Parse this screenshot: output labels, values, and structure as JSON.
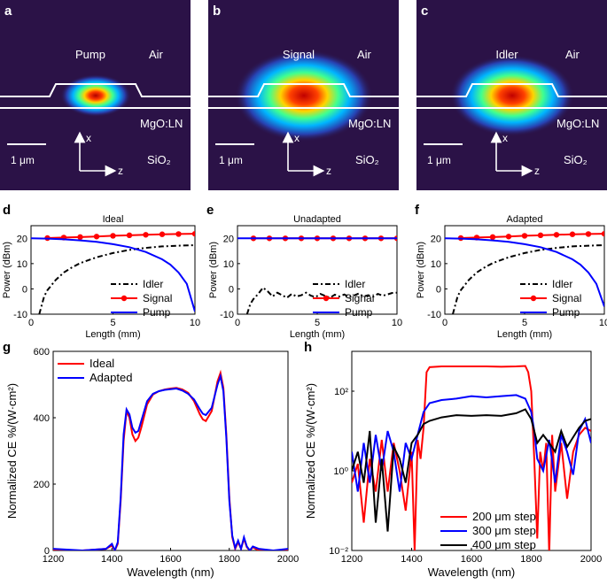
{
  "mode_panels": [
    {
      "letter": "a",
      "mode": "Pump",
      "air": "Air",
      "core": "MgO:LN",
      "substrate": "SiO₂",
      "scale": "1 μm",
      "axis_x": "x",
      "axis_z": "z"
    },
    {
      "letter": "b",
      "mode": "Signal",
      "air": "Air",
      "core": "MgO:LN",
      "substrate": "SiO₂",
      "scale": "1 μm",
      "axis_x": "x",
      "axis_z": "z"
    },
    {
      "letter": "c",
      "mode": "Idler",
      "air": "Air",
      "core": "MgO:LN",
      "substrate": "SiO₂",
      "scale": "1 μm",
      "axis_x": "x",
      "axis_z": "z"
    }
  ],
  "colors": {
    "red": "#ff0000",
    "blue": "#0000ff",
    "black": "#000000",
    "field_bg": "#2b1247"
  },
  "chart_data": [
    {
      "panel": "d",
      "type": "line",
      "title": "Ideal",
      "xlabel": "Length (mm)",
      "ylabel": "Power (dBm)",
      "xlim": [
        0,
        10
      ],
      "ylim": [
        -10,
        25
      ],
      "xticks": [
        0,
        5,
        10
      ],
      "yticks": [
        -10,
        0,
        10,
        20
      ],
      "series": [
        {
          "name": "Idler",
          "style": "dashdot",
          "color": "#000000",
          "x": [
            0.5,
            0.8,
            1,
            1.5,
            2,
            2.5,
            3,
            4,
            5,
            6,
            7,
            8,
            9,
            10
          ],
          "y": [
            -10,
            -3,
            -0.5,
            3.5,
            6.5,
            8.5,
            10.2,
            12.5,
            14.2,
            15.4,
            16.2,
            16.8,
            17.1,
            17.3
          ]
        },
        {
          "name": "Signal",
          "style": "marker",
          "color": "#ff0000",
          "x": [
            1,
            2,
            3,
            4,
            5,
            6,
            7,
            8,
            9,
            10
          ],
          "y": [
            20.1,
            20.3,
            20.5,
            20.7,
            21,
            21.2,
            21.4,
            21.6,
            21.7,
            21.8
          ]
        },
        {
          "name": "Pump",
          "style": "solid",
          "color": "#0000ff",
          "x": [
            0,
            1,
            2,
            3,
            4,
            5,
            6,
            7,
            8,
            8.5,
            9,
            9.5,
            10
          ],
          "y": [
            20,
            19.9,
            19.6,
            19.2,
            18.6,
            17.7,
            16.5,
            14.6,
            11.7,
            9.6,
            6.5,
            2,
            -9
          ]
        }
      ],
      "legend": [
        "Idler",
        "Signal",
        "Pump"
      ]
    },
    {
      "panel": "e",
      "type": "line",
      "title": "Unadapted",
      "xlabel": "Length (mm)",
      "ylabel": "Power (dBm)",
      "xlim": [
        0,
        10
      ],
      "ylim": [
        -10,
        25
      ],
      "xticks": [
        0,
        5,
        10
      ],
      "yticks": [
        -10,
        0,
        10,
        20
      ],
      "series": [
        {
          "name": "Idler",
          "style": "dashdot",
          "color": "#000000",
          "x": [
            0.6,
            0.8,
            1,
            1.3,
            1.6,
            1.9,
            2.2,
            2.5,
            2.8,
            3.1,
            3.4,
            3.7,
            4,
            4.3,
            4.6,
            4.9,
            5.2,
            5.5,
            5.8,
            6.1,
            6.4,
            6.7,
            7,
            7.3,
            7.6,
            7.9,
            8.2,
            8.5,
            8.8,
            9.1,
            9.4,
            9.7,
            10
          ],
          "y": [
            -10,
            -6,
            -4,
            -2,
            0.5,
            -1,
            -3,
            -1.5,
            -2.5,
            -3.5,
            -2,
            -3,
            -2.5,
            -1.5,
            -2.7,
            -3.2,
            -2,
            -2.8,
            -3.5,
            -2.3,
            -3,
            -2.2,
            -3.3,
            -2.6,
            -1.8,
            -3,
            -2.5,
            -3.1,
            -2,
            -2.7,
            -2.2,
            -1.6,
            -1.5
          ]
        },
        {
          "name": "Signal",
          "style": "marker",
          "color": "#ff0000",
          "x": [
            1,
            2,
            3,
            4,
            5,
            6,
            7,
            8,
            9,
            10
          ],
          "y": [
            20,
            20,
            20,
            20,
            20,
            20,
            20,
            20,
            20,
            20
          ]
        },
        {
          "name": "Pump",
          "style": "solid",
          "color": "#0000ff",
          "x": [
            0,
            10
          ],
          "y": [
            20,
            20
          ]
        }
      ],
      "legend": [
        "Idler",
        "Signal",
        "Pump"
      ]
    },
    {
      "panel": "f",
      "type": "line",
      "title": "Adapted",
      "xlabel": "Length (mm)",
      "ylabel": "Power (dBm)",
      "xlim": [
        0,
        10
      ],
      "ylim": [
        -10,
        25
      ],
      "xticks": [
        0,
        5,
        10
      ],
      "yticks": [
        -10,
        0,
        10,
        20
      ],
      "series": [
        {
          "name": "Idler",
          "style": "dashdot",
          "color": "#000000",
          "x": [
            0.5,
            0.8,
            1,
            1.5,
            2,
            2.5,
            3,
            4,
            5,
            6,
            7,
            8,
            9,
            10
          ],
          "y": [
            -10,
            -3,
            -0.5,
            3.5,
            6.5,
            8.5,
            10.2,
            12.5,
            14.2,
            15.4,
            16.2,
            16.8,
            17.1,
            17.3
          ]
        },
        {
          "name": "Signal",
          "style": "marker",
          "color": "#ff0000",
          "x": [
            1,
            2,
            3,
            4,
            5,
            6,
            7,
            8,
            9,
            10
          ],
          "y": [
            20.1,
            20.3,
            20.5,
            20.7,
            21,
            21.2,
            21.4,
            21.6,
            21.7,
            21.8
          ]
        },
        {
          "name": "Pump",
          "style": "solid",
          "color": "#0000ff",
          "x": [
            0,
            1,
            2,
            3,
            4,
            5,
            6,
            7,
            8,
            8.5,
            9,
            9.5,
            10
          ],
          "y": [
            20,
            19.9,
            19.6,
            19.2,
            18.6,
            17.7,
            16.5,
            14.6,
            11.7,
            9.6,
            6.5,
            2,
            -7
          ]
        }
      ],
      "legend": [
        "Idler",
        "Signal",
        "Pump"
      ]
    },
    {
      "panel": "g",
      "type": "line",
      "xlabel": "Wavelength (nm)",
      "ylabel": "Normalized CE %/(W·cm²)",
      "xlim": [
        1200,
        2000
      ],
      "ylim": [
        0,
        600
      ],
      "xticks": [
        1200,
        1400,
        1600,
        1800,
        2000
      ],
      "yticks": [
        0,
        200,
        400,
        600
      ],
      "series": [
        {
          "name": "Ideal",
          "color": "#ff0000",
          "x": [
            1200,
            1300,
            1380,
            1400,
            1410,
            1420,
            1430,
            1440,
            1450,
            1460,
            1470,
            1480,
            1490,
            1500,
            1520,
            1540,
            1560,
            1580,
            1600,
            1620,
            1640,
            1660,
            1680,
            1700,
            1710,
            1720,
            1740,
            1760,
            1770,
            1780,
            1790,
            1800,
            1810,
            1820,
            1830,
            1840,
            1850,
            1860,
            1870,
            1880,
            1900,
            1950,
            2000
          ],
          "y": [
            0,
            0,
            5,
            15,
            0,
            20,
            150,
            330,
            420,
            400,
            350,
            330,
            340,
            370,
            440,
            470,
            480,
            485,
            488,
            490,
            485,
            475,
            450,
            410,
            395,
            390,
            420,
            510,
            535,
            490,
            350,
            160,
            40,
            5,
            25,
            5,
            35,
            10,
            0,
            10,
            0,
            0,
            0
          ]
        },
        {
          "name": "Adapted",
          "color": "#0000ff",
          "x": [
            1200,
            1300,
            1380,
            1400,
            1410,
            1420,
            1430,
            1440,
            1450,
            1460,
            1470,
            1480,
            1490,
            1500,
            1520,
            1540,
            1560,
            1580,
            1600,
            1620,
            1640,
            1660,
            1680,
            1700,
            1710,
            1720,
            1740,
            1760,
            1770,
            1780,
            1790,
            1800,
            1810,
            1820,
            1830,
            1840,
            1850,
            1860,
            1870,
            1880,
            1900,
            1950,
            2000
          ],
          "y": [
            5,
            0,
            5,
            20,
            0,
            25,
            160,
            350,
            425,
            410,
            370,
            355,
            360,
            390,
            450,
            472,
            480,
            484,
            486,
            488,
            482,
            472,
            455,
            425,
            412,
            408,
            430,
            500,
            525,
            480,
            340,
            150,
            45,
            8,
            30,
            5,
            40,
            12,
            0,
            12,
            5,
            0,
            5
          ]
        }
      ],
      "legend": [
        "Ideal",
        "Adapted"
      ]
    },
    {
      "panel": "h",
      "type": "line",
      "xlabel": "Wavelength (nm)",
      "ylabel": "Normalized CE %/(W·cm²)",
      "yscale": "log",
      "xlim": [
        1200,
        2000
      ],
      "ylim": [
        0.01,
        1000
      ],
      "xticks": [
        1200,
        1400,
        1600,
        1800,
        2000
      ],
      "yticks": [
        0.01,
        1,
        100
      ],
      "ytick_labels": [
        "10⁻²",
        "10⁰",
        "10²"
      ],
      "series": [
        {
          "name": "200 μm step",
          "color": "#ff0000",
          "x": [
            1200,
            1220,
            1240,
            1260,
            1280,
            1300,
            1320,
            1340,
            1360,
            1380,
            1400,
            1410,
            1420,
            1430,
            1440,
            1450,
            1460,
            1500,
            1550,
            1600,
            1650,
            1700,
            1750,
            1780,
            1790,
            1800,
            1810,
            1820,
            1830,
            1840,
            1850,
            1860,
            1870,
            1880,
            1900,
            1920,
            1940,
            1960,
            1980,
            2000
          ],
          "y": [
            0.5,
            1.5,
            0.05,
            2,
            0.3,
            6,
            0.3,
            5,
            1,
            0.1,
            3,
            0.01,
            6,
            2,
            12,
            300,
            400,
            420,
            420,
            420,
            420,
            410,
            420,
            430,
            300,
            100,
            2,
            0.02,
            3,
            1,
            5,
            0.005,
            8,
            0.3,
            5,
            0.2,
            3,
            8,
            12,
            10
          ]
        },
        {
          "name": "300 μm step",
          "color": "#0000ff",
          "x": [
            1200,
            1220,
            1240,
            1260,
            1280,
            1300,
            1320,
            1340,
            1360,
            1380,
            1400,
            1420,
            1440,
            1460,
            1500,
            1550,
            1600,
            1650,
            1700,
            1750,
            1780,
            1800,
            1810,
            1820,
            1840,
            1860,
            1880,
            1900,
            1920,
            1940,
            1960,
            1980,
            2000
          ],
          "y": [
            3,
            0.3,
            5,
            0.5,
            8,
            1,
            10,
            3,
            0.3,
            5,
            2,
            8,
            30,
            50,
            60,
            65,
            75,
            70,
            75,
            80,
            65,
            30,
            10,
            2,
            1,
            6,
            0.5,
            8,
            3,
            0.8,
            10,
            20,
            5
          ]
        },
        {
          "name": "400 μm step",
          "color": "#000000",
          "x": [
            1200,
            1220,
            1240,
            1260,
            1280,
            1300,
            1320,
            1340,
            1360,
            1380,
            1400,
            1420,
            1440,
            1460,
            1500,
            1550,
            1600,
            1650,
            1700,
            1750,
            1780,
            1800,
            1820,
            1840,
            1860,
            1880,
            1900,
            1920,
            1940,
            1960,
            1980,
            2000
          ],
          "y": [
            1,
            3,
            0.5,
            10,
            0.05,
            2,
            0.03,
            4,
            2,
            0.5,
            5,
            8,
            15,
            18,
            22,
            25,
            24,
            25,
            24,
            28,
            35,
            20,
            5,
            8,
            5,
            3,
            10,
            4,
            7,
            12,
            18,
            20
          ]
        }
      ],
      "legend": [
        "200 μm step",
        "300 μm step",
        "400 μm step"
      ]
    }
  ]
}
